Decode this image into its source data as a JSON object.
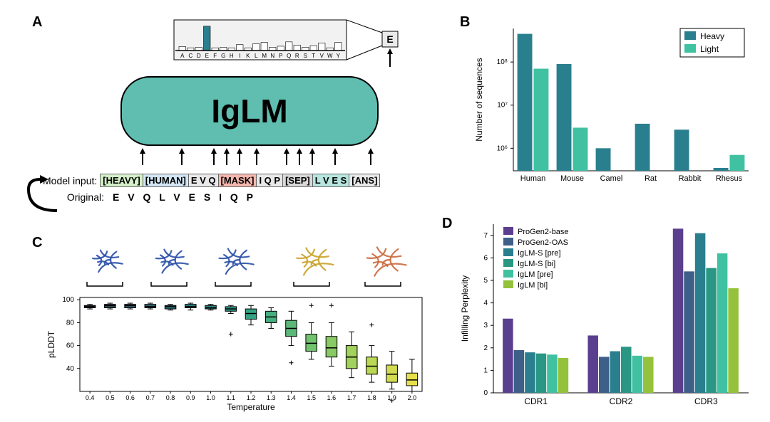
{
  "labels": {
    "A": "A",
    "B": "B",
    "C": "C",
    "D": "D"
  },
  "panelA": {
    "box_label": "IgLM",
    "box_fill": "#5fbeb0",
    "box_stroke": "#000000",
    "output_letter": "E",
    "aa_axis": [
      "A",
      "C",
      "D",
      "E",
      "F",
      "G",
      "H",
      "I",
      "K",
      "L",
      "M",
      "N",
      "P",
      "Q",
      "R",
      "S",
      "T",
      "V",
      "W",
      "Y"
    ],
    "aa_bar_heights": [
      0.15,
      0.1,
      0.12,
      0.9,
      0.1,
      0.12,
      0.1,
      0.22,
      0.1,
      0.25,
      0.3,
      0.12,
      0.16,
      0.32,
      0.2,
      0.12,
      0.18,
      0.28,
      0.1,
      0.3
    ],
    "aa_highlight_index": 3,
    "aa_bar_fill_highlight": "#2a7f8e",
    "aa_bar_fill_default": "#ffffff",
    "aa_bar_stroke": "#000000",
    "input_label": "Model input:",
    "original_label": "Original:",
    "original_seq": "E V Q L V E S I Q P",
    "tokens": [
      {
        "text": "[HEAVY]",
        "bg": "#d4efc9"
      },
      {
        "text": "[HUMAN]",
        "bg": "#d2e6f5"
      },
      {
        "text": "E V Q",
        "bg": "#e9e9e9"
      },
      {
        "text": "[MASK]",
        "bg": "#f3b7ad"
      },
      {
        "text": "I Q P",
        "bg": "#e9e9e9"
      },
      {
        "text": "[SEP]",
        "bg": "#d9d9d9"
      },
      {
        "text": "L V E S",
        "bg": "#b7e6df"
      },
      {
        "text": "[ANS]",
        "bg": "#e9e9e9"
      }
    ]
  },
  "panelB": {
    "type": "bar",
    "legend": {
      "items": [
        {
          "label": "Heavy",
          "color": "#2a7f8e"
        },
        {
          "label": "Light",
          "color": "#3fc1a2"
        }
      ],
      "border": "#000000"
    },
    "ylabel": "Number of sequences",
    "yscale": "log",
    "yticks": [
      1000000.0,
      10000000.0,
      100000000.0
    ],
    "ytick_labels": [
      "10⁶",
      "10⁷",
      "10⁸"
    ],
    "categories": [
      "Human",
      "Mouse",
      "Camel",
      "Rat",
      "Rabbit",
      "Rhesus"
    ],
    "heavy": [
      450000000.0,
      90000000.0,
      1000000.0,
      3700000.0,
      2700000.0,
      350000.0
    ],
    "light": [
      70000000.0,
      3000000.0,
      null,
      null,
      null,
      700000.0
    ],
    "bar_width": 0.38,
    "background": "#ffffff",
    "axis_color": "#000000",
    "label_fontsize": 11
  },
  "panelC": {
    "type": "boxplot",
    "ylabel": "pLDDT",
    "xlabel": "Temperature",
    "xticks": [
      0.4,
      0.5,
      0.6,
      0.7,
      0.8,
      0.9,
      1.0,
      1.1,
      1.2,
      1.3,
      1.4,
      1.5,
      1.6,
      1.7,
      1.8,
      1.9,
      2.0
    ],
    "yticks": [
      40,
      60,
      80,
      100
    ],
    "boxes": [
      {
        "q1": 93,
        "med": 94,
        "q3": 95,
        "lo": 92,
        "hi": 96,
        "out": [],
        "color": "#2e3e4e"
      },
      {
        "q1": 93,
        "med": 95,
        "q3": 96,
        "lo": 92,
        "hi": 97,
        "out": [],
        "color": "#2f4a56"
      },
      {
        "q1": 93,
        "med": 95,
        "q3": 96,
        "lo": 92,
        "hi": 97,
        "out": [],
        "color": "#305661"
      },
      {
        "q1": 93,
        "med": 94,
        "q3": 96,
        "lo": 92,
        "hi": 97,
        "out": [],
        "color": "#2e636c"
      },
      {
        "q1": 92,
        "med": 94,
        "q3": 95,
        "lo": 91,
        "hi": 96,
        "out": [],
        "color": "#2b7078"
      },
      {
        "q1": 93,
        "med": 94,
        "q3": 96,
        "lo": 91,
        "hi": 97,
        "out": [],
        "color": "#277d7f"
      },
      {
        "q1": 92,
        "med": 93,
        "q3": 95,
        "lo": 91,
        "hi": 96,
        "out": [],
        "color": "#268a83"
      },
      {
        "q1": 90,
        "med": 92,
        "q3": 94,
        "lo": 88,
        "hi": 95,
        "out": [
          70
        ],
        "color": "#2a9785"
      },
      {
        "q1": 83,
        "med": 88,
        "q3": 92,
        "lo": 78,
        "hi": 95,
        "out": [],
        "color": "#35a383"
      },
      {
        "q1": 80,
        "med": 85,
        "q3": 90,
        "lo": 75,
        "hi": 93,
        "out": [],
        "color": "#47ae7f"
      },
      {
        "q1": 68,
        "med": 75,
        "q3": 82,
        "lo": 60,
        "hi": 90,
        "out": [
          45
        ],
        "color": "#5bb878"
      },
      {
        "q1": 55,
        "med": 62,
        "q3": 70,
        "lo": 48,
        "hi": 80,
        "out": [
          95
        ],
        "color": "#72c26f"
      },
      {
        "q1": 50,
        "med": 58,
        "q3": 68,
        "lo": 42,
        "hi": 80,
        "out": [
          95
        ],
        "color": "#8aca66"
      },
      {
        "q1": 40,
        "med": 50,
        "q3": 60,
        "lo": 32,
        "hi": 72,
        "out": [],
        "color": "#a3d15d"
      },
      {
        "q1": 35,
        "med": 42,
        "q3": 50,
        "lo": 28,
        "hi": 60,
        "out": [
          78
        ],
        "color": "#bbd756"
      },
      {
        "q1": 28,
        "med": 35,
        "q3": 43,
        "lo": 22,
        "hi": 55,
        "out": [
          12
        ],
        "color": "#d2dc50"
      },
      {
        "q1": 25,
        "med": 30,
        "q3": 36,
        "lo": 20,
        "hi": 48,
        "out": [],
        "color": "#e8e04b"
      }
    ],
    "protein_colors": [
      "#2a4fa7",
      "#2a4fa7",
      "#2a4fa7",
      "#caa22a",
      "#c96a3e"
    ]
  },
  "panelD": {
    "type": "grouped_bar",
    "ylabel": "Infilling Perplexity",
    "categories": [
      "CDR1",
      "CDR2",
      "CDR3"
    ],
    "yticks": [
      0,
      1,
      2,
      3,
      4,
      5,
      6,
      7
    ],
    "series": [
      {
        "label": "ProGen2-base",
        "color": "#5b3f8f",
        "values": [
          3.3,
          2.55,
          7.3
        ]
      },
      {
        "label": "ProGen2-OAS",
        "color": "#3e5f88",
        "values": [
          1.9,
          1.6,
          5.4
        ]
      },
      {
        "label": "IgLM-S [pre]",
        "color": "#2a7f8e",
        "values": [
          1.8,
          1.85,
          7.1
        ]
      },
      {
        "label": "IgLM-S [bi]",
        "color": "#2a9784",
        "values": [
          1.75,
          2.05,
          5.55
        ]
      },
      {
        "label": "IgLM [pre]",
        "color": "#3fc1a2",
        "values": [
          1.7,
          1.65,
          6.2
        ]
      },
      {
        "label": "IgLM [bi]",
        "color": "#95c23c",
        "values": [
          1.55,
          1.6,
          4.65
        ]
      }
    ],
    "bar_width": 0.13,
    "background": "#ffffff",
    "axis_color": "#000000"
  }
}
